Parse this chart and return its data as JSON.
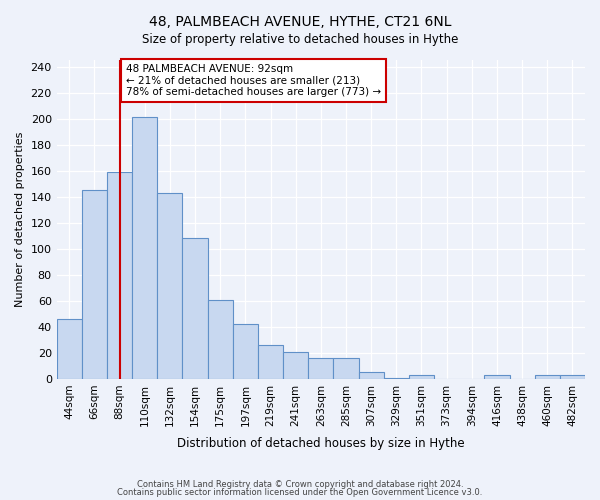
{
  "title1": "48, PALMBEACH AVENUE, HYTHE, CT21 6NL",
  "title2": "Size of property relative to detached houses in Hythe",
  "xlabel": "Distribution of detached houses by size in Hythe",
  "ylabel": "Number of detached properties",
  "bar_labels": [
    "44sqm",
    "66sqm",
    "88sqm",
    "110sqm",
    "132sqm",
    "154sqm",
    "175sqm",
    "197sqm",
    "219sqm",
    "241sqm",
    "263sqm",
    "285sqm",
    "307sqm",
    "329sqm",
    "351sqm",
    "373sqm",
    "394sqm",
    "416sqm",
    "438sqm",
    "460sqm",
    "482sqm"
  ],
  "bar_values": [
    46,
    145,
    159,
    201,
    143,
    108,
    61,
    42,
    26,
    21,
    16,
    16,
    5,
    1,
    3,
    0,
    0,
    3,
    0,
    3,
    3
  ],
  "bar_color": "#c8d8f0",
  "bar_edge_color": "#6090c8",
  "vline_x": 2,
  "vline_color": "#cc0000",
  "annotation_text": "48 PALMBEACH AVENUE: 92sqm\n← 21% of detached houses are smaller (213)\n78% of semi-detached houses are larger (773) →",
  "annotation_box_color": "#ffffff",
  "annotation_box_edge": "#cc0000",
  "ylim": [
    0,
    245
  ],
  "yticks": [
    0,
    20,
    40,
    60,
    80,
    100,
    120,
    140,
    160,
    180,
    200,
    220,
    240
  ],
  "footer1": "Contains HM Land Registry data © Crown copyright and database right 2024.",
  "footer2": "Contains public sector information licensed under the Open Government Licence v3.0.",
  "background_color": "#eef2fa"
}
